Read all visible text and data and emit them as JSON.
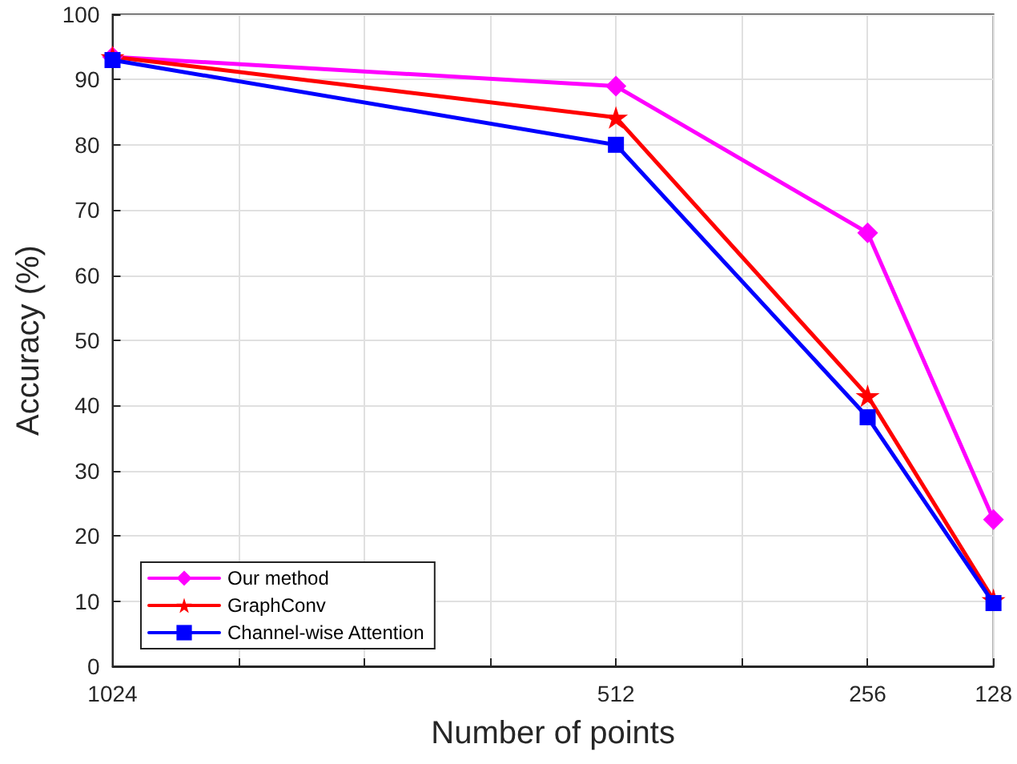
{
  "chart_data": {
    "type": "line",
    "xlabel": "Number of points",
    "ylabel": "Accuracy (%)",
    "x": [
      1024,
      512,
      256,
      128
    ],
    "xlim": [
      1024,
      128
    ],
    "xticks": [
      1024,
      {
        "value": 896,
        "label": null
      },
      {
        "value": 768,
        "label": null
      },
      {
        "value": 640,
        "label": null
      },
      512,
      {
        "value": 384,
        "label": null
      },
      256,
      128
    ],
    "ylim": [
      0,
      100
    ],
    "yticks": [
      0,
      10,
      20,
      30,
      40,
      50,
      60,
      70,
      80,
      90,
      100
    ],
    "grid": true,
    "legend": "bottom left",
    "line_style": "solid",
    "series": [
      {
        "name": "Our method",
        "color": "#ff00ff",
        "marker": "diamond",
        "values": [
          93.5,
          89,
          66.5,
          22.5
        ]
      },
      {
        "name": "GraphConv",
        "color": "#ff0000",
        "marker": "star",
        "values": [
          93.5,
          84.2,
          41.5,
          10.2
        ]
      },
      {
        "name": "Channel-wise Attention",
        "color": "#0000ff",
        "marker": "square",
        "values": [
          93,
          80,
          38.2,
          9.7
        ]
      }
    ]
  }
}
